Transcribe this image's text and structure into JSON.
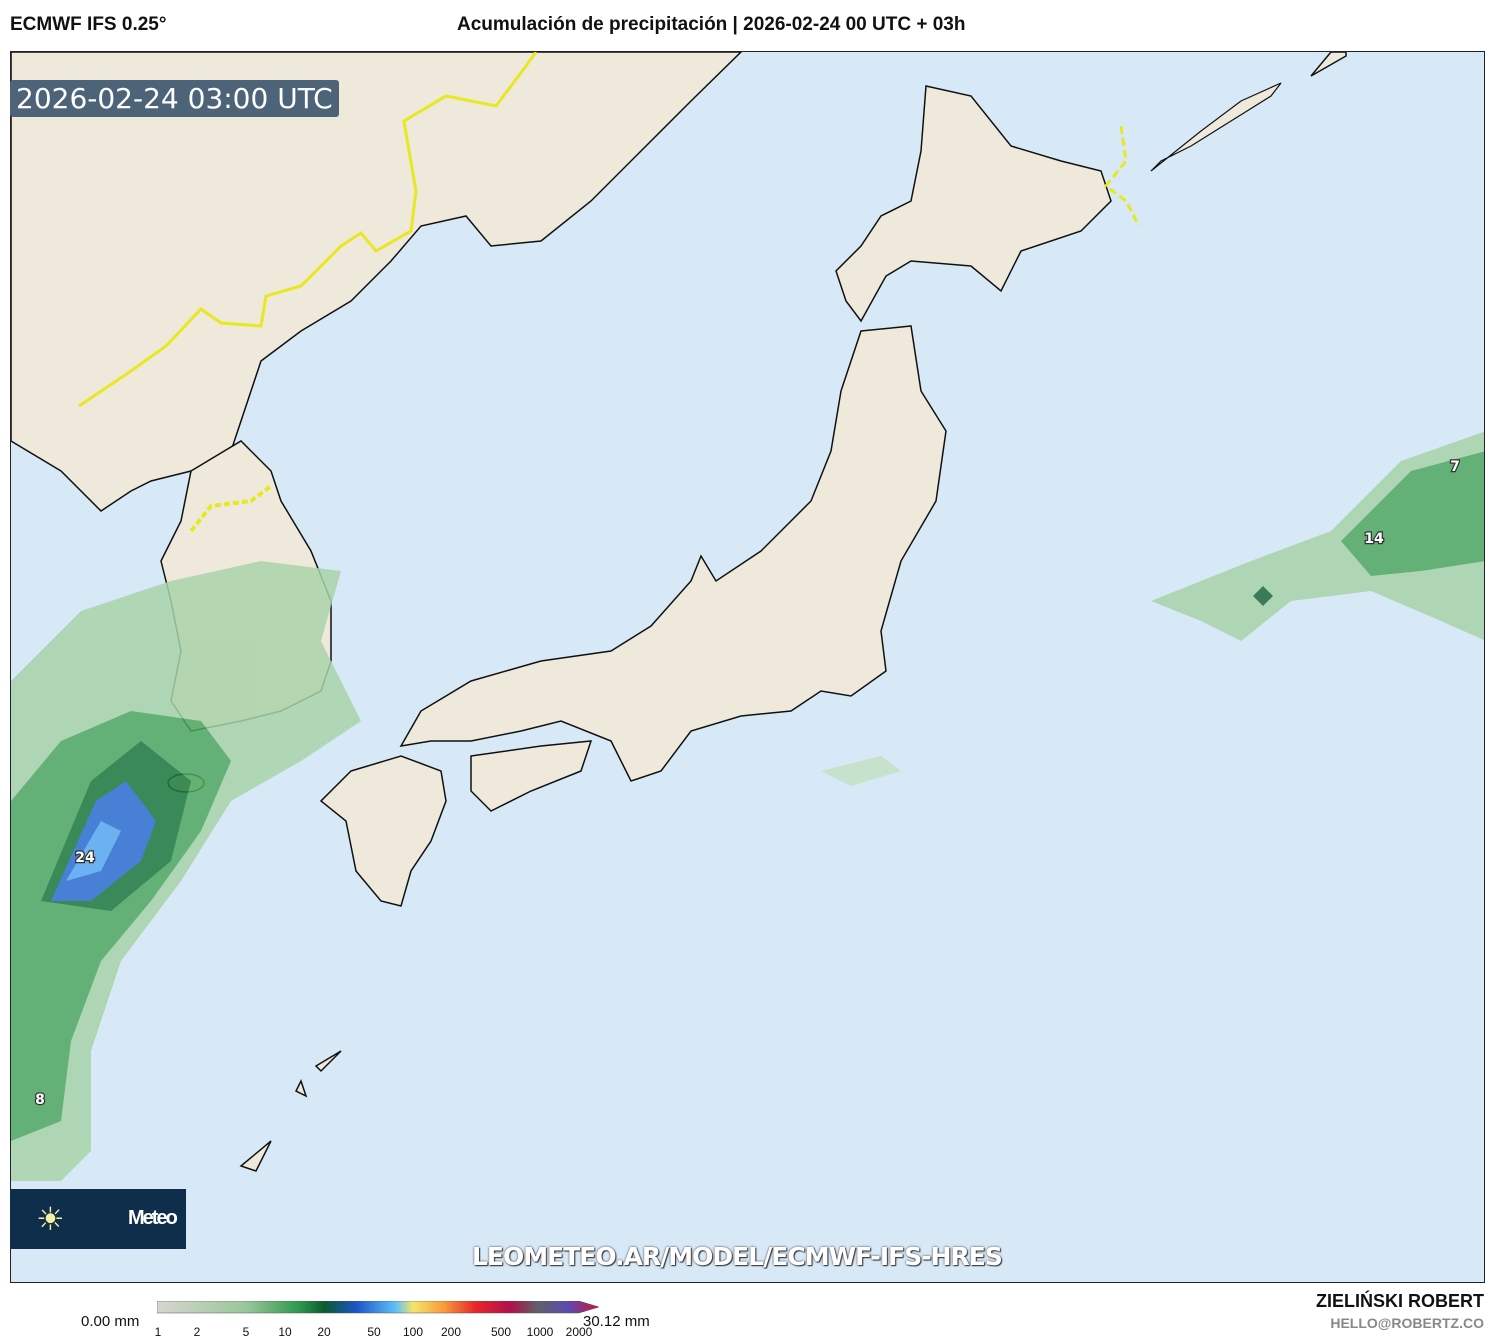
{
  "header": {
    "model": "ECMWF IFS 0.25°",
    "title": "Acumulación de precipitación | 2026-02-24 00 UTC + 03h"
  },
  "map": {
    "valid_time": "2026-02-24 03:00 UTC",
    "colors": {
      "land": "#efe9dc",
      "sea": "#d7e8f7",
      "border": "#e8e820"
    },
    "value_labels": [
      "24",
      "8",
      "7",
      "14"
    ],
    "watermark": "LEOMETEO.AR/MODEL/ECMWF-IFS-HRES",
    "logo": {
      "icon": "sun-icon",
      "text": "Meteo"
    }
  },
  "legend": {
    "min_label": "0.00 mm",
    "max_label": "30.12 mm",
    "ticks": [
      "1",
      "2",
      "5",
      "10",
      "20",
      "50",
      "100",
      "200",
      "500",
      "1000",
      "2000"
    ]
  },
  "credits": {
    "author": "ZIELIŃSKI ROBERT",
    "email": "HELLO@ROBERTZ.CO"
  }
}
